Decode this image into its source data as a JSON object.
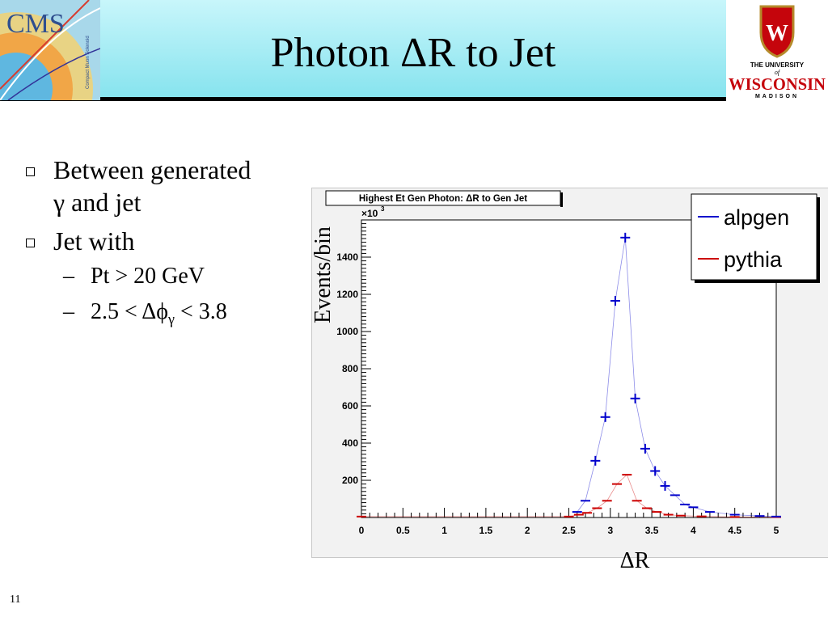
{
  "slide": {
    "title": "Photon ΔR to Jet",
    "page_number": "11"
  },
  "bullets": [
    {
      "text_1": "Between generated",
      "text_2": "γ and jet"
    },
    {
      "text": "Jet with"
    }
  ],
  "sub_bullets": [
    {
      "text": "Pt > 20 GeV"
    },
    {
      "prefix": "2.5 < Δϕ",
      "subscript": "γ",
      "suffix": " < 3.8"
    }
  ],
  "logos": {
    "cms_text": "CMS",
    "cms_caption": "Compact Muon Solenoid",
    "uw_line1": "THE UNIVERSITY",
    "uw_of": "of",
    "uw_line2": "WISCONSIN",
    "uw_line3": "MADISON",
    "uw_crest_letter": "W"
  },
  "chart_data": {
    "type": "scatter",
    "title": "Highest Et Gen Photon: ΔR to Gen Jet",
    "xlabel": "ΔR",
    "ylabel": "Events/bin",
    "y_exponent_label": "×10",
    "y_exponent_power": "3",
    "xlim": [
      0,
      5
    ],
    "ylim": [
      0,
      1600
    ],
    "x_ticks": [
      "0",
      "0.5",
      "1",
      "1.5",
      "2",
      "2.5",
      "3",
      "3.5",
      "4",
      "4.5",
      "5"
    ],
    "y_ticks": [
      "200",
      "400",
      "600",
      "800",
      "1000",
      "1200",
      "1400"
    ],
    "legend_position": "top-right",
    "grid": false,
    "series": [
      {
        "name": "alpgen",
        "color": "#0000cc",
        "points": [
          {
            "x": 2.6,
            "y": 30
          },
          {
            "x": 2.7,
            "y": 90
          },
          {
            "x": 2.82,
            "y": 305
          },
          {
            "x": 2.94,
            "y": 540
          },
          {
            "x": 3.06,
            "y": 1165
          },
          {
            "x": 3.18,
            "y": 1505
          },
          {
            "x": 3.3,
            "y": 640
          },
          {
            "x": 3.42,
            "y": 370
          },
          {
            "x": 3.54,
            "y": 250
          },
          {
            "x": 3.66,
            "y": 170
          },
          {
            "x": 3.78,
            "y": 120
          },
          {
            "x": 3.9,
            "y": 70
          },
          {
            "x": 4.0,
            "y": 55
          },
          {
            "x": 4.2,
            "y": 30
          },
          {
            "x": 4.5,
            "y": 15
          },
          {
            "x": 4.8,
            "y": 8
          },
          {
            "x": 5.0,
            "y": 5
          }
        ]
      },
      {
        "name": "pythia",
        "color": "#cc0000",
        "points": [
          {
            "x": 0.0,
            "y": 5
          },
          {
            "x": 2.5,
            "y": 5
          },
          {
            "x": 2.62,
            "y": 15
          },
          {
            "x": 2.72,
            "y": 25
          },
          {
            "x": 2.84,
            "y": 50
          },
          {
            "x": 2.96,
            "y": 90
          },
          {
            "x": 3.08,
            "y": 180
          },
          {
            "x": 3.2,
            "y": 230
          },
          {
            "x": 3.32,
            "y": 90
          },
          {
            "x": 3.44,
            "y": 50
          },
          {
            "x": 3.56,
            "y": 30
          },
          {
            "x": 3.7,
            "y": 15
          },
          {
            "x": 3.85,
            "y": 10
          },
          {
            "x": 4.1,
            "y": 6
          },
          {
            "x": 4.5,
            "y": 3
          },
          {
            "x": 5.0,
            "y": 2
          }
        ]
      }
    ]
  }
}
